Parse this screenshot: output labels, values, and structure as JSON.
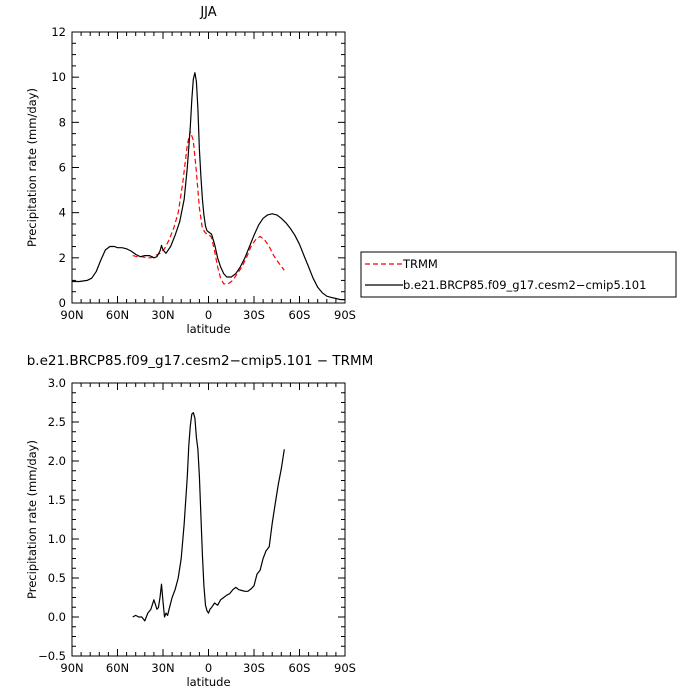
{
  "chart_data": [
    {
      "type": "line",
      "title": "JJA",
      "xlabel": "latitude",
      "ylabel": "Precipitation rate (mm/day)",
      "xlim": [
        -90,
        90
      ],
      "ylim": [
        0,
        12
      ],
      "xticks": [
        -90,
        -60,
        -30,
        0,
        30,
        60,
        90
      ],
      "xtick_labels": [
        "90N",
        "60N",
        "30N",
        "0",
        "30S",
        "60S",
        "90S"
      ],
      "yticks": [
        0,
        2,
        4,
        6,
        8,
        10,
        12
      ],
      "ytick_labels": [
        "0",
        "2",
        "4",
        "6",
        "8",
        "10",
        "12"
      ],
      "legend_placement": "right",
      "series": [
        {
          "name": "TRMM",
          "color": "#ff0000",
          "dash": "dashed",
          "x": [
            -50,
            -47,
            -44,
            -41,
            -38,
            -35,
            -32,
            -29,
            -26,
            -23,
            -20,
            -17,
            -14,
            -12,
            -10,
            -8,
            -6,
            -4,
            -2,
            0,
            2,
            4,
            6,
            8,
            10,
            13,
            16,
            19,
            22,
            25,
            28,
            31,
            34,
            37,
            40,
            43,
            46,
            50
          ],
          "y": [
            2.1,
            2.05,
            2.05,
            2.0,
            2.0,
            2.1,
            2.2,
            2.4,
            2.8,
            3.3,
            4.0,
            5.3,
            7.0,
            7.6,
            7.2,
            5.8,
            4.2,
            3.3,
            3.1,
            3.05,
            2.9,
            2.3,
            1.6,
            1.1,
            0.85,
            0.85,
            1.0,
            1.3,
            1.6,
            2.0,
            2.5,
            2.8,
            2.95,
            2.8,
            2.5,
            2.1,
            1.8,
            1.45
          ]
        },
        {
          "name": "b.e21.BRCP85.f09_g17.cesm2−cmip5.101",
          "color": "#000000",
          "dash": "solid",
          "x": [
            -90,
            -85,
            -80,
            -77,
            -74,
            -71,
            -68,
            -65,
            -62,
            -60,
            -57,
            -54,
            -51,
            -48,
            -45,
            -42,
            -39,
            -36,
            -34,
            -32,
            -31,
            -30,
            -28,
            -25,
            -22,
            -19,
            -16,
            -14,
            -12,
            -11,
            -10,
            -9,
            -8,
            -7,
            -6,
            -5,
            -4,
            -3,
            -2,
            -1,
            0,
            2,
            4,
            6,
            8,
            10,
            12,
            15,
            18,
            21,
            24,
            27,
            30,
            33,
            36,
            39,
            42,
            45,
            48,
            51,
            54,
            57,
            60,
            63,
            66,
            69,
            72,
            75,
            78,
            81,
            84,
            87,
            90
          ],
          "y": [
            0.95,
            0.95,
            1.0,
            1.1,
            1.4,
            1.9,
            2.35,
            2.5,
            2.5,
            2.45,
            2.45,
            2.4,
            2.3,
            2.15,
            2.05,
            2.1,
            2.1,
            2.0,
            2.05,
            2.3,
            2.55,
            2.35,
            2.2,
            2.5,
            3.0,
            3.6,
            4.6,
            6.0,
            7.8,
            9.0,
            9.9,
            10.2,
            9.8,
            8.6,
            6.8,
            5.6,
            4.6,
            3.9,
            3.4,
            3.2,
            3.15,
            3.05,
            2.6,
            2.0,
            1.6,
            1.3,
            1.15,
            1.15,
            1.3,
            1.6,
            2.0,
            2.5,
            3.0,
            3.45,
            3.75,
            3.9,
            3.95,
            3.9,
            3.75,
            3.55,
            3.3,
            3.0,
            2.6,
            2.1,
            1.6,
            1.1,
            0.7,
            0.45,
            0.3,
            0.25,
            0.2,
            0.15,
            0.15
          ]
        }
      ]
    },
    {
      "type": "line",
      "title": "b.e21.BRCP85.f09_g17.cesm2−cmip5.101  −  TRMM",
      "xlabel": "latitude",
      "ylabel": "Precipitation rate (mm/day)",
      "xlim": [
        -90,
        90
      ],
      "ylim": [
        -0.5,
        3.0
      ],
      "xticks": [
        -90,
        -60,
        -30,
        0,
        30,
        60,
        90
      ],
      "xtick_labels": [
        "90N",
        "60N",
        "30N",
        "0",
        "30S",
        "60S",
        "90S"
      ],
      "yticks": [
        -0.5,
        0,
        0.5,
        1.0,
        1.5,
        2.0,
        2.5,
        3.0
      ],
      "ytick_labels": [
        "−0.5",
        "0.0",
        "0.5",
        "1.0",
        "1.5",
        "2.0",
        "2.5",
        "3.0"
      ],
      "series": [
        {
          "color": "#000000",
          "dash": "solid",
          "x": [
            -50,
            -48,
            -46,
            -44,
            -42,
            -40,
            -38,
            -36,
            -34,
            -33,
            -32,
            -31,
            -30,
            -29,
            -28,
            -27,
            -26,
            -24,
            -22,
            -20,
            -18,
            -16,
            -14,
            -13,
            -12,
            -11,
            -10,
            -9,
            -8,
            -7,
            -6,
            -5,
            -4,
            -3,
            -2,
            -1,
            0,
            1,
            2,
            4,
            6,
            8,
            10,
            12,
            14,
            16,
            18,
            20,
            22,
            24,
            26,
            28,
            30,
            32,
            34,
            36,
            38,
            40,
            42,
            44,
            46,
            48,
            50
          ],
          "y": [
            0.0,
            0.02,
            0.0,
            0.0,
            -0.05,
            0.05,
            0.1,
            0.22,
            0.1,
            0.12,
            0.25,
            0.42,
            0.2,
            0.0,
            0.05,
            0.02,
            0.1,
            0.25,
            0.35,
            0.5,
            0.75,
            1.2,
            1.8,
            2.2,
            2.45,
            2.6,
            2.62,
            2.55,
            2.3,
            2.15,
            1.8,
            1.3,
            0.8,
            0.4,
            0.15,
            0.08,
            0.05,
            0.1,
            0.12,
            0.18,
            0.15,
            0.22,
            0.25,
            0.28,
            0.3,
            0.35,
            0.38,
            0.35,
            0.34,
            0.33,
            0.33,
            0.36,
            0.4,
            0.55,
            0.6,
            0.75,
            0.85,
            0.9,
            1.2,
            1.45,
            1.7,
            1.9,
            2.15
          ]
        }
      ]
    }
  ]
}
